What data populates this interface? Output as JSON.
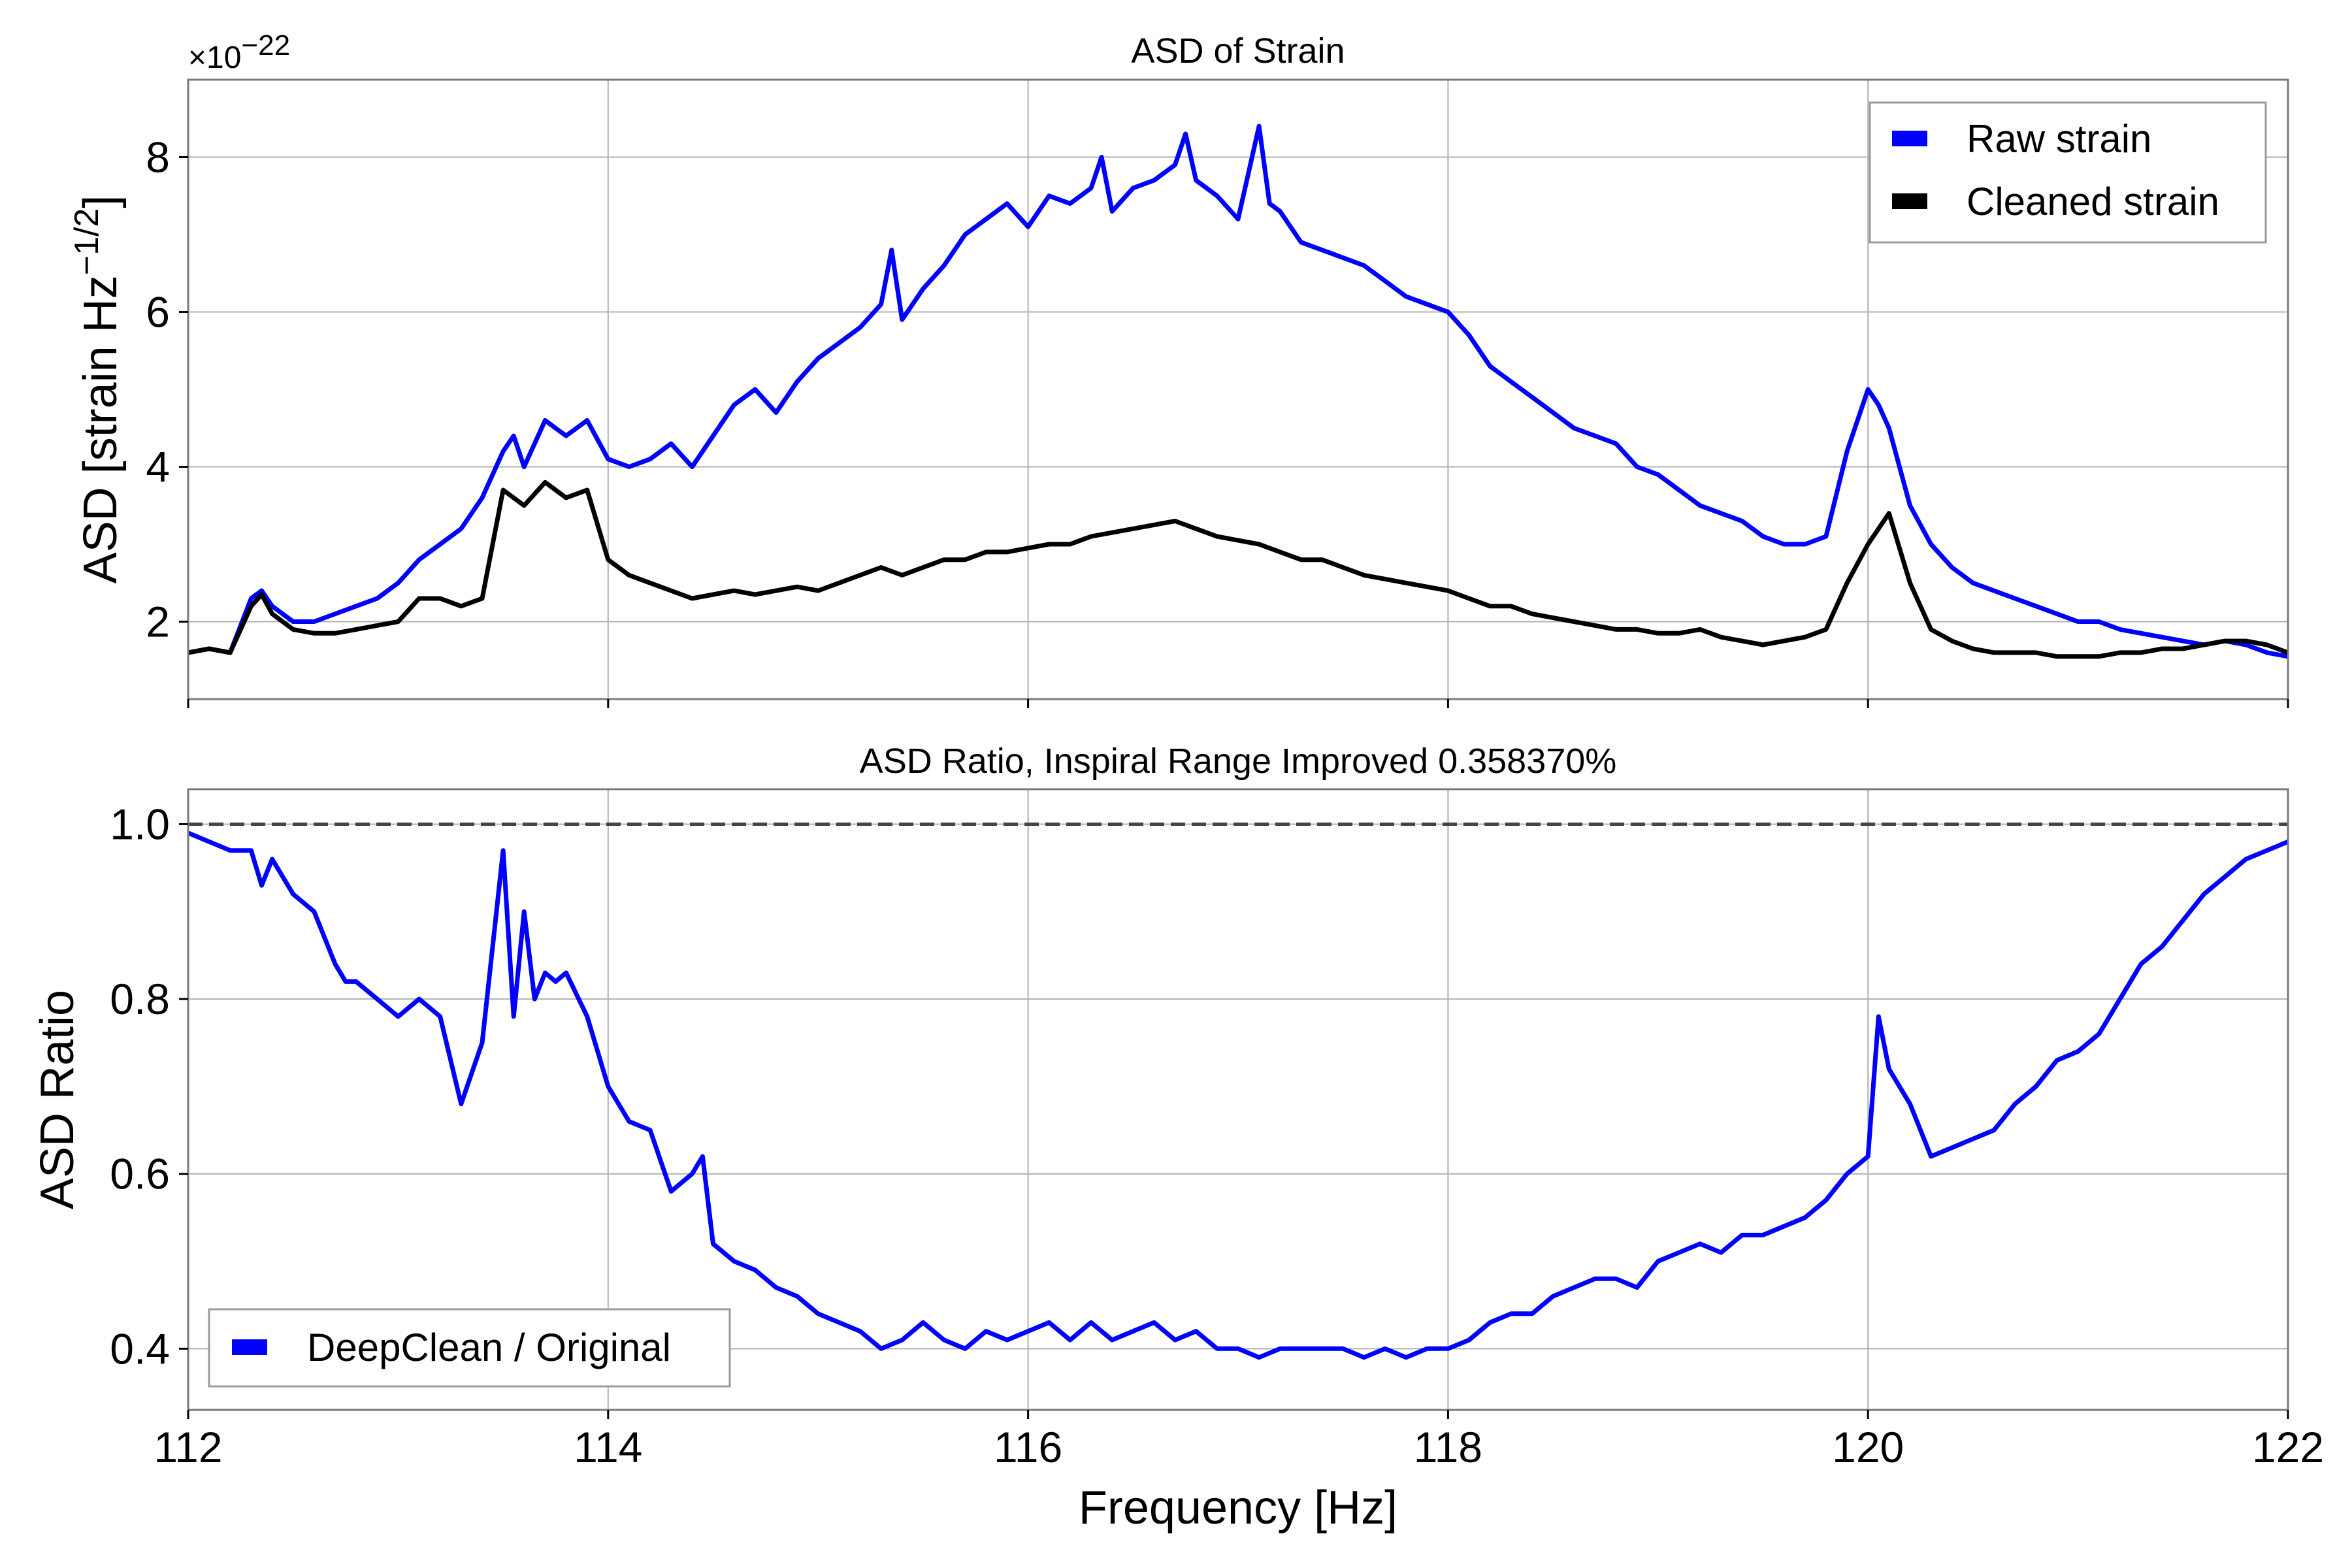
{
  "chart_data": [
    {
      "type": "line",
      "title": "ASD of Strain",
      "xlabel": "",
      "ylabel": "ASD [strain Hz",
      "ylabel_exp": "−1/2",
      "ylabel_close": "]",
      "y_scale_label": "×10",
      "y_scale_exp": "−22",
      "xlim": [
        112,
        122
      ],
      "ylim": [
        1.0,
        9.0
      ],
      "x_ticks": [
        112,
        114,
        116,
        118,
        120,
        122
      ],
      "y_ticks": [
        2,
        4,
        6,
        8
      ],
      "y_tick_labels": [
        "2",
        "4",
        "6",
        "8"
      ],
      "grid": true,
      "legend_position": "top-right",
      "series": [
        {
          "name": "Raw strain",
          "color": "#0000ff",
          "x": [
            112.0,
            112.1,
            112.2,
            112.3,
            112.35,
            112.4,
            112.5,
            112.6,
            112.7,
            112.8,
            112.9,
            113.0,
            113.1,
            113.2,
            113.3,
            113.4,
            113.5,
            113.55,
            113.6,
            113.7,
            113.75,
            113.8,
            113.9,
            114.0,
            114.1,
            114.2,
            114.3,
            114.4,
            114.5,
            114.6,
            114.7,
            114.8,
            114.9,
            115.0,
            115.1,
            115.2,
            115.3,
            115.35,
            115.4,
            115.5,
            115.6,
            115.7,
            115.8,
            115.9,
            116.0,
            116.1,
            116.2,
            116.3,
            116.35,
            116.4,
            116.5,
            116.6,
            116.7,
            116.75,
            116.8,
            116.9,
            117.0,
            117.1,
            117.15,
            117.2,
            117.3,
            117.4,
            117.5,
            117.6,
            117.7,
            117.8,
            117.9,
            118.0,
            118.1,
            118.2,
            118.3,
            118.4,
            118.5,
            118.6,
            118.7,
            118.8,
            118.9,
            119.0,
            119.1,
            119.2,
            119.3,
            119.4,
            119.5,
            119.6,
            119.7,
            119.8,
            119.9,
            120.0,
            120.05,
            120.1,
            120.2,
            120.3,
            120.4,
            120.5,
            120.6,
            120.7,
            120.8,
            120.9,
            121.0,
            121.1,
            121.2,
            121.3,
            121.4,
            121.5,
            121.6,
            121.7,
            121.8,
            121.9,
            122.0
          ],
          "y": [
            1.6,
            1.65,
            1.6,
            2.3,
            2.4,
            2.2,
            2.0,
            2.0,
            2.1,
            2.2,
            2.3,
            2.5,
            2.8,
            3.0,
            3.2,
            3.6,
            4.2,
            4.4,
            4.0,
            4.6,
            4.5,
            4.4,
            4.6,
            4.1,
            4.0,
            4.1,
            4.3,
            4.0,
            4.4,
            4.8,
            5.0,
            4.7,
            5.1,
            5.4,
            5.6,
            5.8,
            6.1,
            6.8,
            5.9,
            6.3,
            6.6,
            7.0,
            7.2,
            7.4,
            7.1,
            7.5,
            7.4,
            7.6,
            8.0,
            7.3,
            7.6,
            7.7,
            7.9,
            8.3,
            7.7,
            7.5,
            7.2,
            8.4,
            7.4,
            7.3,
            6.9,
            6.8,
            6.7,
            6.6,
            6.4,
            6.2,
            6.1,
            6.0,
            5.7,
            5.3,
            5.1,
            4.9,
            4.7,
            4.5,
            4.4,
            4.3,
            4.0,
            3.9,
            3.7,
            3.5,
            3.4,
            3.3,
            3.1,
            3.0,
            3.0,
            3.1,
            4.2,
            5.0,
            4.8,
            4.5,
            3.5,
            3.0,
            2.7,
            2.5,
            2.4,
            2.3,
            2.2,
            2.1,
            2.0,
            2.0,
            1.9,
            1.85,
            1.8,
            1.75,
            1.7,
            1.75,
            1.7,
            1.6,
            1.55
          ]
        },
        {
          "name": "Cleaned strain",
          "color": "#000000",
          "x": [
            112.0,
            112.1,
            112.2,
            112.3,
            112.35,
            112.4,
            112.5,
            112.6,
            112.7,
            112.8,
            112.9,
            113.0,
            113.1,
            113.2,
            113.3,
            113.4,
            113.5,
            113.6,
            113.7,
            113.75,
            113.8,
            113.9,
            114.0,
            114.1,
            114.2,
            114.3,
            114.4,
            114.5,
            114.6,
            114.7,
            114.8,
            114.9,
            115.0,
            115.1,
            115.2,
            115.3,
            115.4,
            115.5,
            115.6,
            115.7,
            115.8,
            115.9,
            116.0,
            116.1,
            116.2,
            116.3,
            116.4,
            116.5,
            116.6,
            116.7,
            116.8,
            116.9,
            117.0,
            117.1,
            117.2,
            117.3,
            117.4,
            117.5,
            117.6,
            117.7,
            117.8,
            117.9,
            118.0,
            118.1,
            118.2,
            118.3,
            118.4,
            118.5,
            118.6,
            118.7,
            118.8,
            118.9,
            119.0,
            119.1,
            119.2,
            119.3,
            119.4,
            119.5,
            119.6,
            119.7,
            119.8,
            119.9,
            120.0,
            120.05,
            120.1,
            120.2,
            120.3,
            120.4,
            120.5,
            120.6,
            120.7,
            120.8,
            120.9,
            121.0,
            121.1,
            121.2,
            121.3,
            121.4,
            121.5,
            121.6,
            121.7,
            121.8,
            121.9,
            122.0
          ],
          "y": [
            1.6,
            1.65,
            1.6,
            2.2,
            2.35,
            2.1,
            1.9,
            1.85,
            1.85,
            1.9,
            1.95,
            2.0,
            2.3,
            2.3,
            2.2,
            2.3,
            3.7,
            3.5,
            3.8,
            3.7,
            3.6,
            3.7,
            2.8,
            2.6,
            2.5,
            2.4,
            2.3,
            2.35,
            2.4,
            2.35,
            2.4,
            2.45,
            2.4,
            2.5,
            2.6,
            2.7,
            2.6,
            2.7,
            2.8,
            2.8,
            2.9,
            2.9,
            2.95,
            3.0,
            3.0,
            3.1,
            3.15,
            3.2,
            3.25,
            3.3,
            3.2,
            3.1,
            3.05,
            3.0,
            2.9,
            2.8,
            2.8,
            2.7,
            2.6,
            2.55,
            2.5,
            2.45,
            2.4,
            2.3,
            2.2,
            2.2,
            2.1,
            2.05,
            2.0,
            1.95,
            1.9,
            1.9,
            1.85,
            1.85,
            1.9,
            1.8,
            1.75,
            1.7,
            1.75,
            1.8,
            1.9,
            2.5,
            3.0,
            3.2,
            3.4,
            2.5,
            1.9,
            1.75,
            1.65,
            1.6,
            1.6,
            1.6,
            1.55,
            1.55,
            1.55,
            1.6,
            1.6,
            1.65,
            1.65,
            1.7,
            1.75,
            1.75,
            1.7,
            1.6
          ]
        }
      ]
    },
    {
      "type": "line",
      "title": "ASD Ratio, Inspiral Range Improved 0.358370%",
      "xlabel": "Frequency [Hz]",
      "ylabel": "ASD Ratio",
      "xlim": [
        112,
        122
      ],
      "ylim": [
        0.33,
        1.04
      ],
      "x_ticks": [
        112,
        114,
        116,
        118,
        120,
        122
      ],
      "x_tick_labels": [
        "112",
        "114",
        "116",
        "118",
        "120",
        "122"
      ],
      "y_ticks": [
        0.4,
        0.6,
        0.8,
        1.0
      ],
      "y_tick_labels": [
        "0.4",
        "0.6",
        "0.8",
        "1.0"
      ],
      "grid": true,
      "legend_position": "bottom-left",
      "reference_line": {
        "y": 1.0,
        "style": "dashed",
        "color": "#444444"
      },
      "series": [
        {
          "name": "DeepClean / Original",
          "color": "#0000ff",
          "x": [
            112.0,
            112.1,
            112.2,
            112.3,
            112.35,
            112.4,
            112.5,
            112.6,
            112.7,
            112.75,
            112.8,
            112.9,
            113.0,
            113.1,
            113.2,
            113.3,
            113.4,
            113.5,
            113.55,
            113.6,
            113.65,
            113.7,
            113.75,
            113.8,
            113.9,
            114.0,
            114.1,
            114.2,
            114.3,
            114.4,
            114.45,
            114.5,
            114.6,
            114.7,
            114.8,
            114.9,
            115.0,
            115.1,
            115.2,
            115.3,
            115.4,
            115.5,
            115.6,
            115.7,
            115.8,
            115.9,
            116.0,
            116.1,
            116.2,
            116.3,
            116.4,
            116.5,
            116.6,
            116.7,
            116.8,
            116.9,
            117.0,
            117.1,
            117.2,
            117.3,
            117.4,
            117.5,
            117.6,
            117.7,
            117.8,
            117.9,
            118.0,
            118.1,
            118.2,
            118.3,
            118.4,
            118.5,
            118.6,
            118.7,
            118.8,
            118.9,
            119.0,
            119.1,
            119.2,
            119.3,
            119.4,
            119.5,
            119.6,
            119.7,
            119.8,
            119.9,
            120.0,
            120.05,
            120.1,
            120.2,
            120.3,
            120.4,
            120.5,
            120.6,
            120.7,
            120.8,
            120.9,
            121.0,
            121.1,
            121.2,
            121.3,
            121.4,
            121.5,
            121.6,
            121.7,
            121.8,
            121.9,
            122.0
          ],
          "y": [
            0.99,
            0.98,
            0.97,
            0.97,
            0.93,
            0.96,
            0.92,
            0.9,
            0.84,
            0.82,
            0.82,
            0.8,
            0.78,
            0.8,
            0.78,
            0.68,
            0.75,
            0.97,
            0.78,
            0.9,
            0.8,
            0.83,
            0.82,
            0.83,
            0.78,
            0.7,
            0.66,
            0.65,
            0.58,
            0.6,
            0.62,
            0.52,
            0.5,
            0.49,
            0.47,
            0.46,
            0.44,
            0.43,
            0.42,
            0.4,
            0.41,
            0.43,
            0.41,
            0.4,
            0.42,
            0.41,
            0.42,
            0.43,
            0.41,
            0.43,
            0.41,
            0.42,
            0.43,
            0.41,
            0.42,
            0.4,
            0.4,
            0.39,
            0.4,
            0.4,
            0.4,
            0.4,
            0.39,
            0.4,
            0.39,
            0.4,
            0.4,
            0.41,
            0.43,
            0.44,
            0.44,
            0.46,
            0.47,
            0.48,
            0.48,
            0.47,
            0.5,
            0.51,
            0.52,
            0.51,
            0.53,
            0.53,
            0.54,
            0.55,
            0.57,
            0.6,
            0.62,
            0.78,
            0.72,
            0.68,
            0.62,
            0.63,
            0.64,
            0.65,
            0.68,
            0.7,
            0.73,
            0.74,
            0.76,
            0.8,
            0.84,
            0.86,
            0.89,
            0.92,
            0.94,
            0.96,
            0.97,
            0.98
          ]
        }
      ]
    }
  ]
}
